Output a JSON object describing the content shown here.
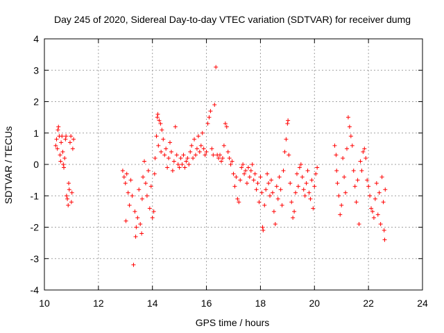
{
  "chart_data": {
    "type": "scatter",
    "title": "Day 245 of 2020, Sidereal Day-to-day VTEC variation (SDTVAR) for receiver dumg",
    "xlabel": "GPS time / hours",
    "ylabel": "SDTVAR / TECUs",
    "xlim": [
      10,
      24
    ],
    "ylim": [
      -4,
      4
    ],
    "xticks": [
      10,
      12,
      14,
      16,
      18,
      20,
      22,
      24
    ],
    "yticks": [
      -4,
      -3,
      -2,
      -1,
      0,
      1,
      2,
      3,
      4
    ],
    "grid": true,
    "marker": "+",
    "color": "#ff0000",
    "series": [
      {
        "name": "dumg",
        "points": [
          [
            10.42,
            0.6
          ],
          [
            10.45,
            0.8
          ],
          [
            10.48,
            0.5
          ],
          [
            10.5,
            1.1
          ],
          [
            10.52,
            1.2
          ],
          [
            10.55,
            0.9
          ],
          [
            10.58,
            0.3
          ],
          [
            10.6,
            0.1
          ],
          [
            10.62,
            0.7
          ],
          [
            10.65,
            0.9
          ],
          [
            10.68,
            0.4
          ],
          [
            10.7,
            0.0
          ],
          [
            10.72,
            -0.1
          ],
          [
            10.75,
            0.2
          ],
          [
            10.78,
            0.8
          ],
          [
            10.8,
            0.9
          ],
          [
            10.82,
            -1.0
          ],
          [
            10.85,
            -1.1
          ],
          [
            10.88,
            -1.3
          ],
          [
            10.9,
            -0.6
          ],
          [
            10.92,
            -0.8
          ],
          [
            10.95,
            0.7
          ],
          [
            10.98,
            0.9
          ],
          [
            11.0,
            -1.2
          ],
          [
            11.02,
            -0.9
          ],
          [
            11.05,
            0.5
          ],
          [
            11.08,
            0.8
          ],
          [
            12.9,
            -0.2
          ],
          [
            12.95,
            -0.4
          ],
          [
            13.0,
            -0.6
          ],
          [
            13.02,
            -1.8
          ],
          [
            13.05,
            -0.3
          ],
          [
            13.1,
            -0.9
          ],
          [
            13.15,
            -1.3
          ],
          [
            13.2,
            -0.5
          ],
          [
            13.25,
            -1.0
          ],
          [
            13.3,
            -3.2
          ],
          [
            13.35,
            -1.5
          ],
          [
            13.38,
            -2.3
          ],
          [
            13.4,
            -2.0
          ],
          [
            13.45,
            -1.7
          ],
          [
            13.5,
            -0.8
          ],
          [
            13.55,
            -1.9
          ],
          [
            13.6,
            -2.2
          ],
          [
            13.62,
            -1.1
          ],
          [
            13.65,
            -0.4
          ],
          [
            13.7,
            0.1
          ],
          [
            13.75,
            -0.6
          ],
          [
            13.8,
            -1.0
          ],
          [
            13.85,
            -0.2
          ],
          [
            13.9,
            -1.4
          ],
          [
            13.95,
            -0.7
          ],
          [
            14.0,
            -1.7
          ],
          [
            14.05,
            -1.5
          ],
          [
            14.08,
            -0.3
          ],
          [
            14.1,
            0.2
          ],
          [
            14.15,
            0.9
          ],
          [
            14.18,
            1.5
          ],
          [
            14.2,
            1.6
          ],
          [
            14.22,
            0.6
          ],
          [
            14.25,
            1.4
          ],
          [
            14.3,
            1.3
          ],
          [
            14.32,
            0.4
          ],
          [
            14.35,
            1.1
          ],
          [
            14.4,
            0.8
          ],
          [
            14.45,
            0.3
          ],
          [
            14.5,
            0.5
          ],
          [
            14.55,
            -0.1
          ],
          [
            14.6,
            0.2
          ],
          [
            14.65,
            0.7
          ],
          [
            14.7,
            0.4
          ],
          [
            14.75,
            -0.2
          ],
          [
            14.8,
            0.1
          ],
          [
            14.85,
            1.2
          ],
          [
            14.9,
            0.3
          ],
          [
            14.95,
            0.0
          ],
          [
            15.0,
            -0.1
          ],
          [
            15.05,
            0.2
          ],
          [
            15.1,
            0.0
          ],
          [
            15.15,
            0.3
          ],
          [
            15.2,
            -0.1
          ],
          [
            15.25,
            0.1
          ],
          [
            15.3,
            0.2
          ],
          [
            15.35,
            0.0
          ],
          [
            15.4,
            0.4
          ],
          [
            15.45,
            0.6
          ],
          [
            15.5,
            0.2
          ],
          [
            15.55,
            0.8
          ],
          [
            15.6,
            0.3
          ],
          [
            15.65,
            0.5
          ],
          [
            15.7,
            0.9
          ],
          [
            15.75,
            0.4
          ],
          [
            15.8,
            0.6
          ],
          [
            15.85,
            1.0
          ],
          [
            15.9,
            0.5
          ],
          [
            15.95,
            0.3
          ],
          [
            16.0,
            0.4
          ],
          [
            16.05,
            1.3
          ],
          [
            16.1,
            1.5
          ],
          [
            16.15,
            1.7
          ],
          [
            16.2,
            0.5
          ],
          [
            16.25,
            0.3
          ],
          [
            16.3,
            1.9
          ],
          [
            16.35,
            3.1
          ],
          [
            16.4,
            0.3
          ],
          [
            16.45,
            0.2
          ],
          [
            16.5,
            0.3
          ],
          [
            16.55,
            0.1
          ],
          [
            16.6,
            0.2
          ],
          [
            16.65,
            0.6
          ],
          [
            16.7,
            1.3
          ],
          [
            16.75,
            1.2
          ],
          [
            16.8,
            0.4
          ],
          [
            16.85,
            0.2
          ],
          [
            16.9,
            0.0
          ],
          [
            16.95,
            0.1
          ],
          [
            17.0,
            -0.3
          ],
          [
            17.05,
            -0.7
          ],
          [
            17.1,
            -0.4
          ],
          [
            17.15,
            -1.1
          ],
          [
            17.2,
            -1.2
          ],
          [
            17.25,
            -0.5
          ],
          [
            17.3,
            -0.1
          ],
          [
            17.35,
            0.0
          ],
          [
            17.4,
            -0.3
          ],
          [
            17.45,
            -0.2
          ],
          [
            17.5,
            -0.6
          ],
          [
            17.55,
            -0.1
          ],
          [
            17.6,
            -0.4
          ],
          [
            17.65,
            -0.2
          ],
          [
            17.7,
            0.0
          ],
          [
            17.75,
            -0.5
          ],
          [
            17.8,
            -0.3
          ],
          [
            17.85,
            -0.8
          ],
          [
            17.9,
            -0.6
          ],
          [
            17.95,
            -1.2
          ],
          [
            18.0,
            -0.4
          ],
          [
            18.05,
            -0.9
          ],
          [
            18.08,
            -2.0
          ],
          [
            18.1,
            -2.1
          ],
          [
            18.15,
            -1.3
          ],
          [
            18.2,
            -0.8
          ],
          [
            18.25,
            -0.3
          ],
          [
            18.3,
            -0.6
          ],
          [
            18.35,
            -1.0
          ],
          [
            18.4,
            -0.5
          ],
          [
            18.45,
            -0.9
          ],
          [
            18.5,
            -1.5
          ],
          [
            18.55,
            -1.9
          ],
          [
            18.6,
            -0.7
          ],
          [
            18.65,
            -1.1
          ],
          [
            18.7,
            -0.4
          ],
          [
            18.75,
            -0.8
          ],
          [
            18.8,
            -1.3
          ],
          [
            18.85,
            -0.2
          ],
          [
            18.9,
            0.4
          ],
          [
            18.95,
            0.8
          ],
          [
            19.0,
            1.3
          ],
          [
            19.02,
            1.4
          ],
          [
            19.05,
            0.3
          ],
          [
            19.1,
            -0.6
          ],
          [
            19.15,
            -1.2
          ],
          [
            19.2,
            -1.7
          ],
          [
            19.25,
            -1.5
          ],
          [
            19.3,
            -0.9
          ],
          [
            19.35,
            -0.3
          ],
          [
            19.4,
            -0.7
          ],
          [
            19.45,
            -0.1
          ],
          [
            19.5,
            0.0
          ],
          [
            19.55,
            -0.4
          ],
          [
            19.6,
            -0.8
          ],
          [
            19.65,
            -1.0
          ],
          [
            19.7,
            -0.6
          ],
          [
            19.75,
            -0.2
          ],
          [
            19.8,
            -0.9
          ],
          [
            19.85,
            -1.1
          ],
          [
            19.9,
            -0.5
          ],
          [
            19.95,
            -1.4
          ],
          [
            20.0,
            -0.7
          ],
          [
            20.05,
            -0.3
          ],
          [
            20.1,
            -0.1
          ],
          [
            20.75,
            0.6
          ],
          [
            20.8,
            0.3
          ],
          [
            20.82,
            -0.2
          ],
          [
            20.85,
            -0.6
          ],
          [
            20.9,
            -1.0
          ],
          [
            20.95,
            -1.6
          ],
          [
            21.0,
            -1.3
          ],
          [
            21.05,
            0.2
          ],
          [
            21.1,
            -0.4
          ],
          [
            21.15,
            -0.9
          ],
          [
            21.2,
            0.5
          ],
          [
            21.25,
            1.5
          ],
          [
            21.3,
            1.2
          ],
          [
            21.35,
            0.9
          ],
          [
            21.4,
            0.6
          ],
          [
            21.45,
            -0.2
          ],
          [
            21.5,
            -0.7
          ],
          [
            21.55,
            -1.2
          ],
          [
            21.6,
            -0.5
          ],
          [
            21.65,
            -1.9
          ],
          [
            21.7,
            0.1
          ],
          [
            21.75,
            -0.2
          ],
          [
            21.8,
            0.4
          ],
          [
            21.85,
            0.5
          ],
          [
            21.9,
            0.2
          ],
          [
            21.95,
            -0.5
          ],
          [
            22.0,
            -0.7
          ],
          [
            22.05,
            -1.0
          ],
          [
            22.1,
            -1.4
          ],
          [
            22.15,
            -1.5
          ],
          [
            22.2,
            -1.7
          ],
          [
            22.25,
            -1.1
          ],
          [
            22.3,
            -0.6
          ],
          [
            22.35,
            -1.6
          ],
          [
            22.4,
            -0.9
          ],
          [
            22.45,
            -1.9
          ],
          [
            22.5,
            -0.4
          ],
          [
            22.55,
            -1.2
          ],
          [
            22.58,
            -2.1
          ],
          [
            22.6,
            -2.4
          ],
          [
            22.62,
            -0.8
          ]
        ]
      }
    ]
  }
}
